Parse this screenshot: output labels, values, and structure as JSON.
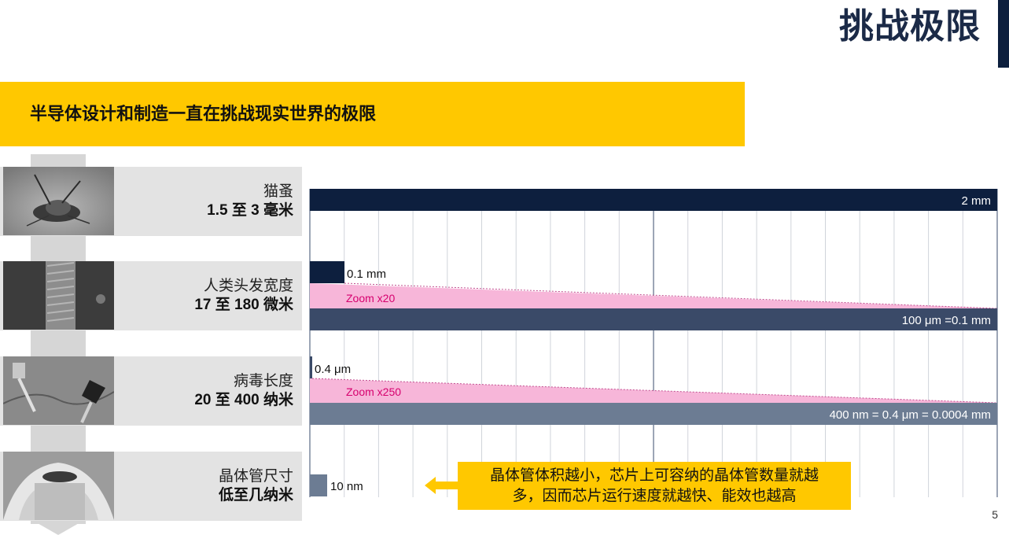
{
  "page": {
    "title": "挑战极限",
    "subtitle": "半导体设计和制造一直在挑战现实世界的极限",
    "page_number": "5"
  },
  "rows": [
    {
      "name": "猫蚤",
      "size": "1.5 至 3 毫米",
      "photo_icon": "flea-photo"
    },
    {
      "name": "人类头发宽度",
      "size": "17 至 180 微米",
      "photo_icon": "hair-photo"
    },
    {
      "name": "病毒长度",
      "size": "20 至 400 纳米",
      "photo_icon": "virus-photo"
    },
    {
      "name": "晶体管尺寸",
      "size": "低至几纳米",
      "photo_icon": "transistor-photo"
    }
  ],
  "bars": {
    "flea": {
      "label": "2 mm",
      "value_mm": 2
    },
    "hair_small": {
      "label": "0.1 mm",
      "value_mm": 0.1
    },
    "hair_zoom": {
      "label": "Zoom x20",
      "factor": 20
    },
    "hair_full": {
      "label": "100 μm =0.1 mm"
    },
    "virus_small": {
      "label": "0.4 μm",
      "value_mm": 0.0004
    },
    "virus_zoom": {
      "label": "Zoom x250",
      "factor": 250
    },
    "virus_full": {
      "label": "400 nm = 0.4 μm = 0.0004 mm"
    },
    "transistor": {
      "label": "10 nm",
      "value_nm": 10
    }
  },
  "callout": {
    "line1": "晶体管体积越小，芯片上可容纳的晶体管数量就越",
    "line2": "多，因而芯片运行速度就越快、能效也越高"
  },
  "colors": {
    "navy": "#0d1f3e",
    "slate": "#3a4a68",
    "gray_blue": "#6c7c93",
    "pink": "#f7b6d9",
    "zoom_text": "#d6006e",
    "yellow": "#ffc800"
  }
}
